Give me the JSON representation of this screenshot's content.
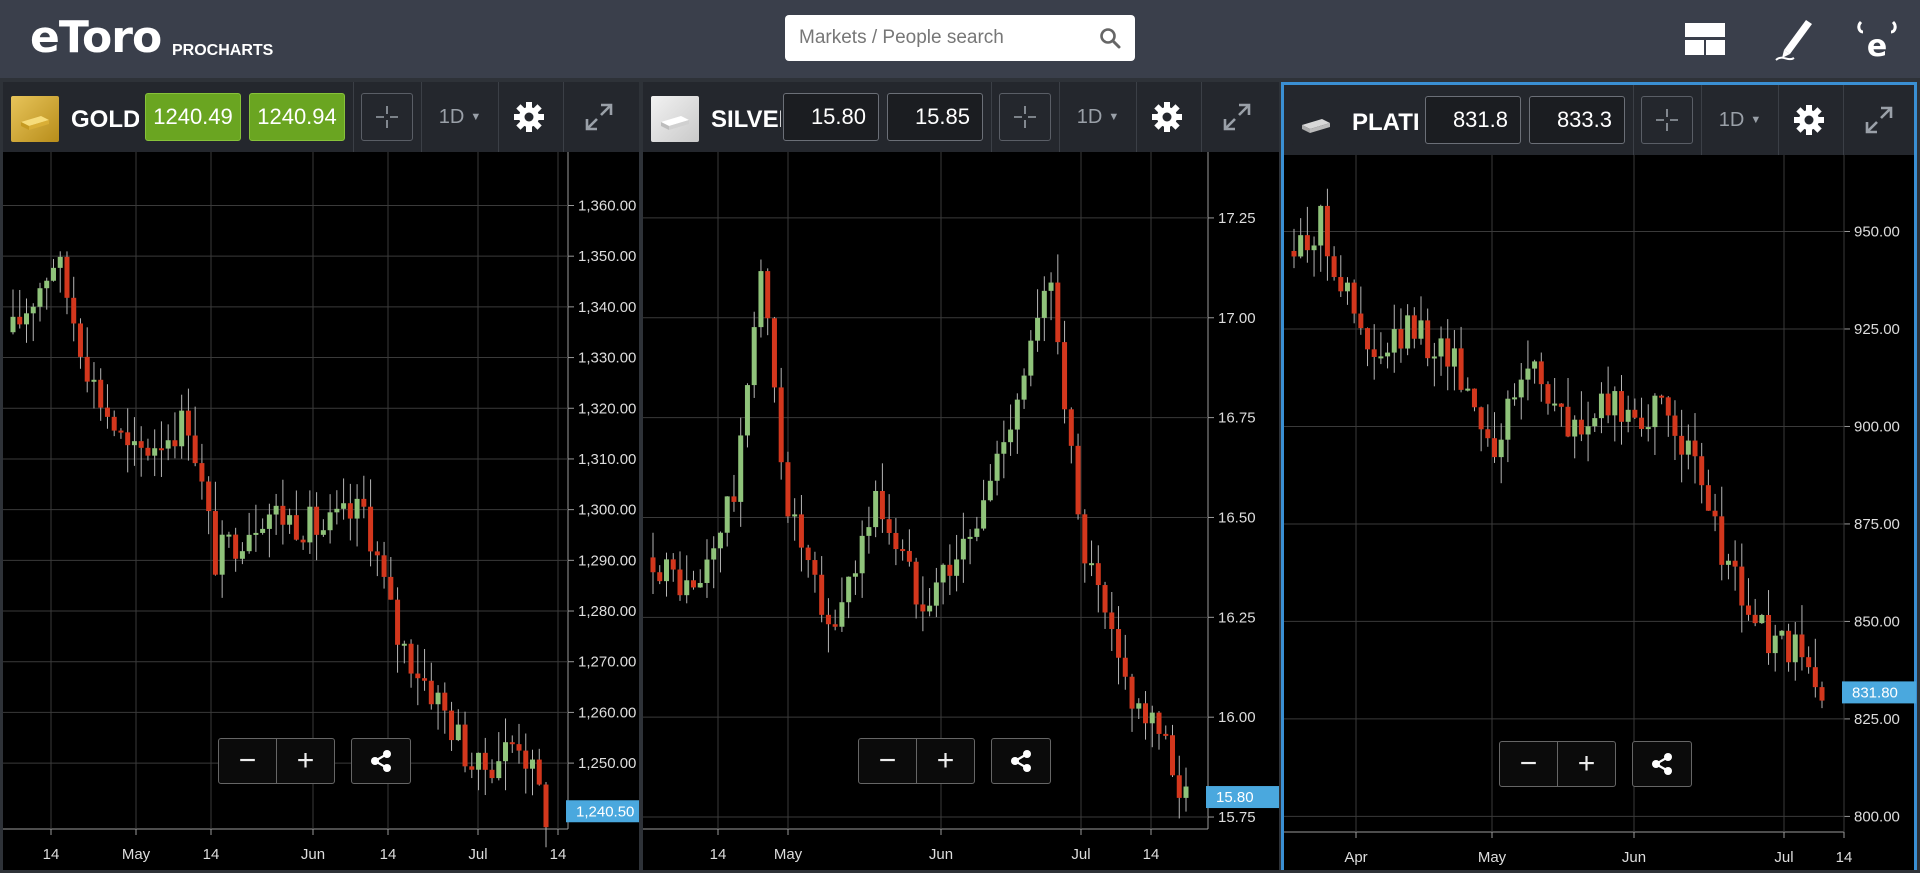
{
  "brand": {
    "logo": "eToro",
    "sub": "PROCHARTS"
  },
  "search": {
    "placeholder": "Markets / People search"
  },
  "top_icons": [
    "layout-icon",
    "pencil-icon",
    "etoro-e-icon"
  ],
  "colors": {
    "up": "#8fc37a",
    "down": "#d3371d",
    "buy": "#6aa521",
    "highlight": "#3a8fd3",
    "price_tag": "#4aa8de"
  },
  "panels": [
    {
      "name": "GOLD",
      "sell": "1240.49",
      "buy": "1240.94",
      "sell_style": "green",
      "buy_style": "green",
      "timeframe": "1D",
      "asset_color": "gold"
    },
    {
      "name": "SILVER",
      "sell": "15.80",
      "buy": "15.85",
      "sell_style": "dark",
      "buy_style": "dark",
      "timeframe": "1D",
      "asset_color": "silver"
    },
    {
      "name": "PLATINUM",
      "sell": "831.8",
      "buy": "833.3",
      "sell_style": "dark",
      "buy_style": "dark",
      "timeframe": "1D",
      "asset_color": "platinum"
    }
  ],
  "chart_data": [
    {
      "type": "candlestick",
      "title": "GOLD",
      "ylim": [
        1237,
        1367
      ],
      "y_ticks": [
        "1,250.00",
        "1,260.00",
        "1,270.00",
        "1,280.00",
        "1,290.00",
        "1,300.00",
        "1,310.00",
        "1,320.00",
        "1,330.00",
        "1,340.00",
        "1,350.00",
        "1,360.00"
      ],
      "x_ticks": [
        "14",
        "May",
        "14",
        "Jun",
        "14",
        "Jul",
        "14"
      ],
      "price_tag": "1,240.50",
      "price_value": 1240.5,
      "start_price": 1335,
      "end_price": 1240,
      "path": [
        [
          0,
          1335
        ],
        [
          0.08,
          1350
        ],
        [
          0.15,
          1325
        ],
        [
          0.22,
          1310
        ],
        [
          0.33,
          1318
        ],
        [
          0.38,
          1290
        ],
        [
          0.47,
          1300
        ],
        [
          0.58,
          1296
        ],
        [
          0.66,
          1300
        ],
        [
          0.72,
          1275
        ],
        [
          0.8,
          1262
        ],
        [
          0.87,
          1248
        ],
        [
          0.95,
          1255
        ],
        [
          1,
          1240
        ]
      ],
      "grid": true
    },
    {
      "type": "candlestick",
      "title": "SILVER",
      "ylim": [
        15.72,
        17.37
      ],
      "y_ticks": [
        "15.75",
        "16.00",
        "16.25",
        "16.50",
        "16.75",
        "17.00",
        "17.25"
      ],
      "x_ticks": [
        "14",
        "May",
        "Jun",
        "Jul",
        "14"
      ],
      "price_tag": "15.80",
      "price_value": 15.8,
      "start_price": 16.4,
      "end_price": 15.8,
      "path": [
        [
          0,
          16.4
        ],
        [
          0.08,
          16.3
        ],
        [
          0.16,
          16.6
        ],
        [
          0.2,
          17.15
        ],
        [
          0.25,
          16.55
        ],
        [
          0.33,
          16.2
        ],
        [
          0.42,
          16.55
        ],
        [
          0.5,
          16.3
        ],
        [
          0.6,
          16.45
        ],
        [
          0.68,
          16.8
        ],
        [
          0.75,
          17.1
        ],
        [
          0.8,
          16.45
        ],
        [
          0.88,
          16.1
        ],
        [
          0.95,
          15.95
        ],
        [
          1,
          15.8
        ]
      ],
      "grid": true
    },
    {
      "type": "candlestick",
      "title": "PLATINUM",
      "ylim": [
        796,
        965
      ],
      "y_ticks": [
        "800.00",
        "825.00",
        "850.00",
        "875.00",
        "900.00",
        "925.00",
        "950.00"
      ],
      "x_ticks": [
        "Apr",
        "May",
        "Jun",
        "Jul",
        "14"
      ],
      "price_tag": "831.80",
      "price_value": 831.8,
      "start_price": 945,
      "end_price": 831,
      "path": [
        [
          0,
          945
        ],
        [
          0.05,
          952
        ],
        [
          0.15,
          915
        ],
        [
          0.22,
          925
        ],
        [
          0.3,
          918
        ],
        [
          0.38,
          895
        ],
        [
          0.45,
          918
        ],
        [
          0.52,
          898
        ],
        [
          0.6,
          905
        ],
        [
          0.72,
          902
        ],
        [
          0.78,
          880
        ],
        [
          0.85,
          855
        ],
        [
          0.9,
          845
        ],
        [
          0.95,
          842
        ],
        [
          1,
          831
        ]
      ],
      "grid": true
    }
  ]
}
